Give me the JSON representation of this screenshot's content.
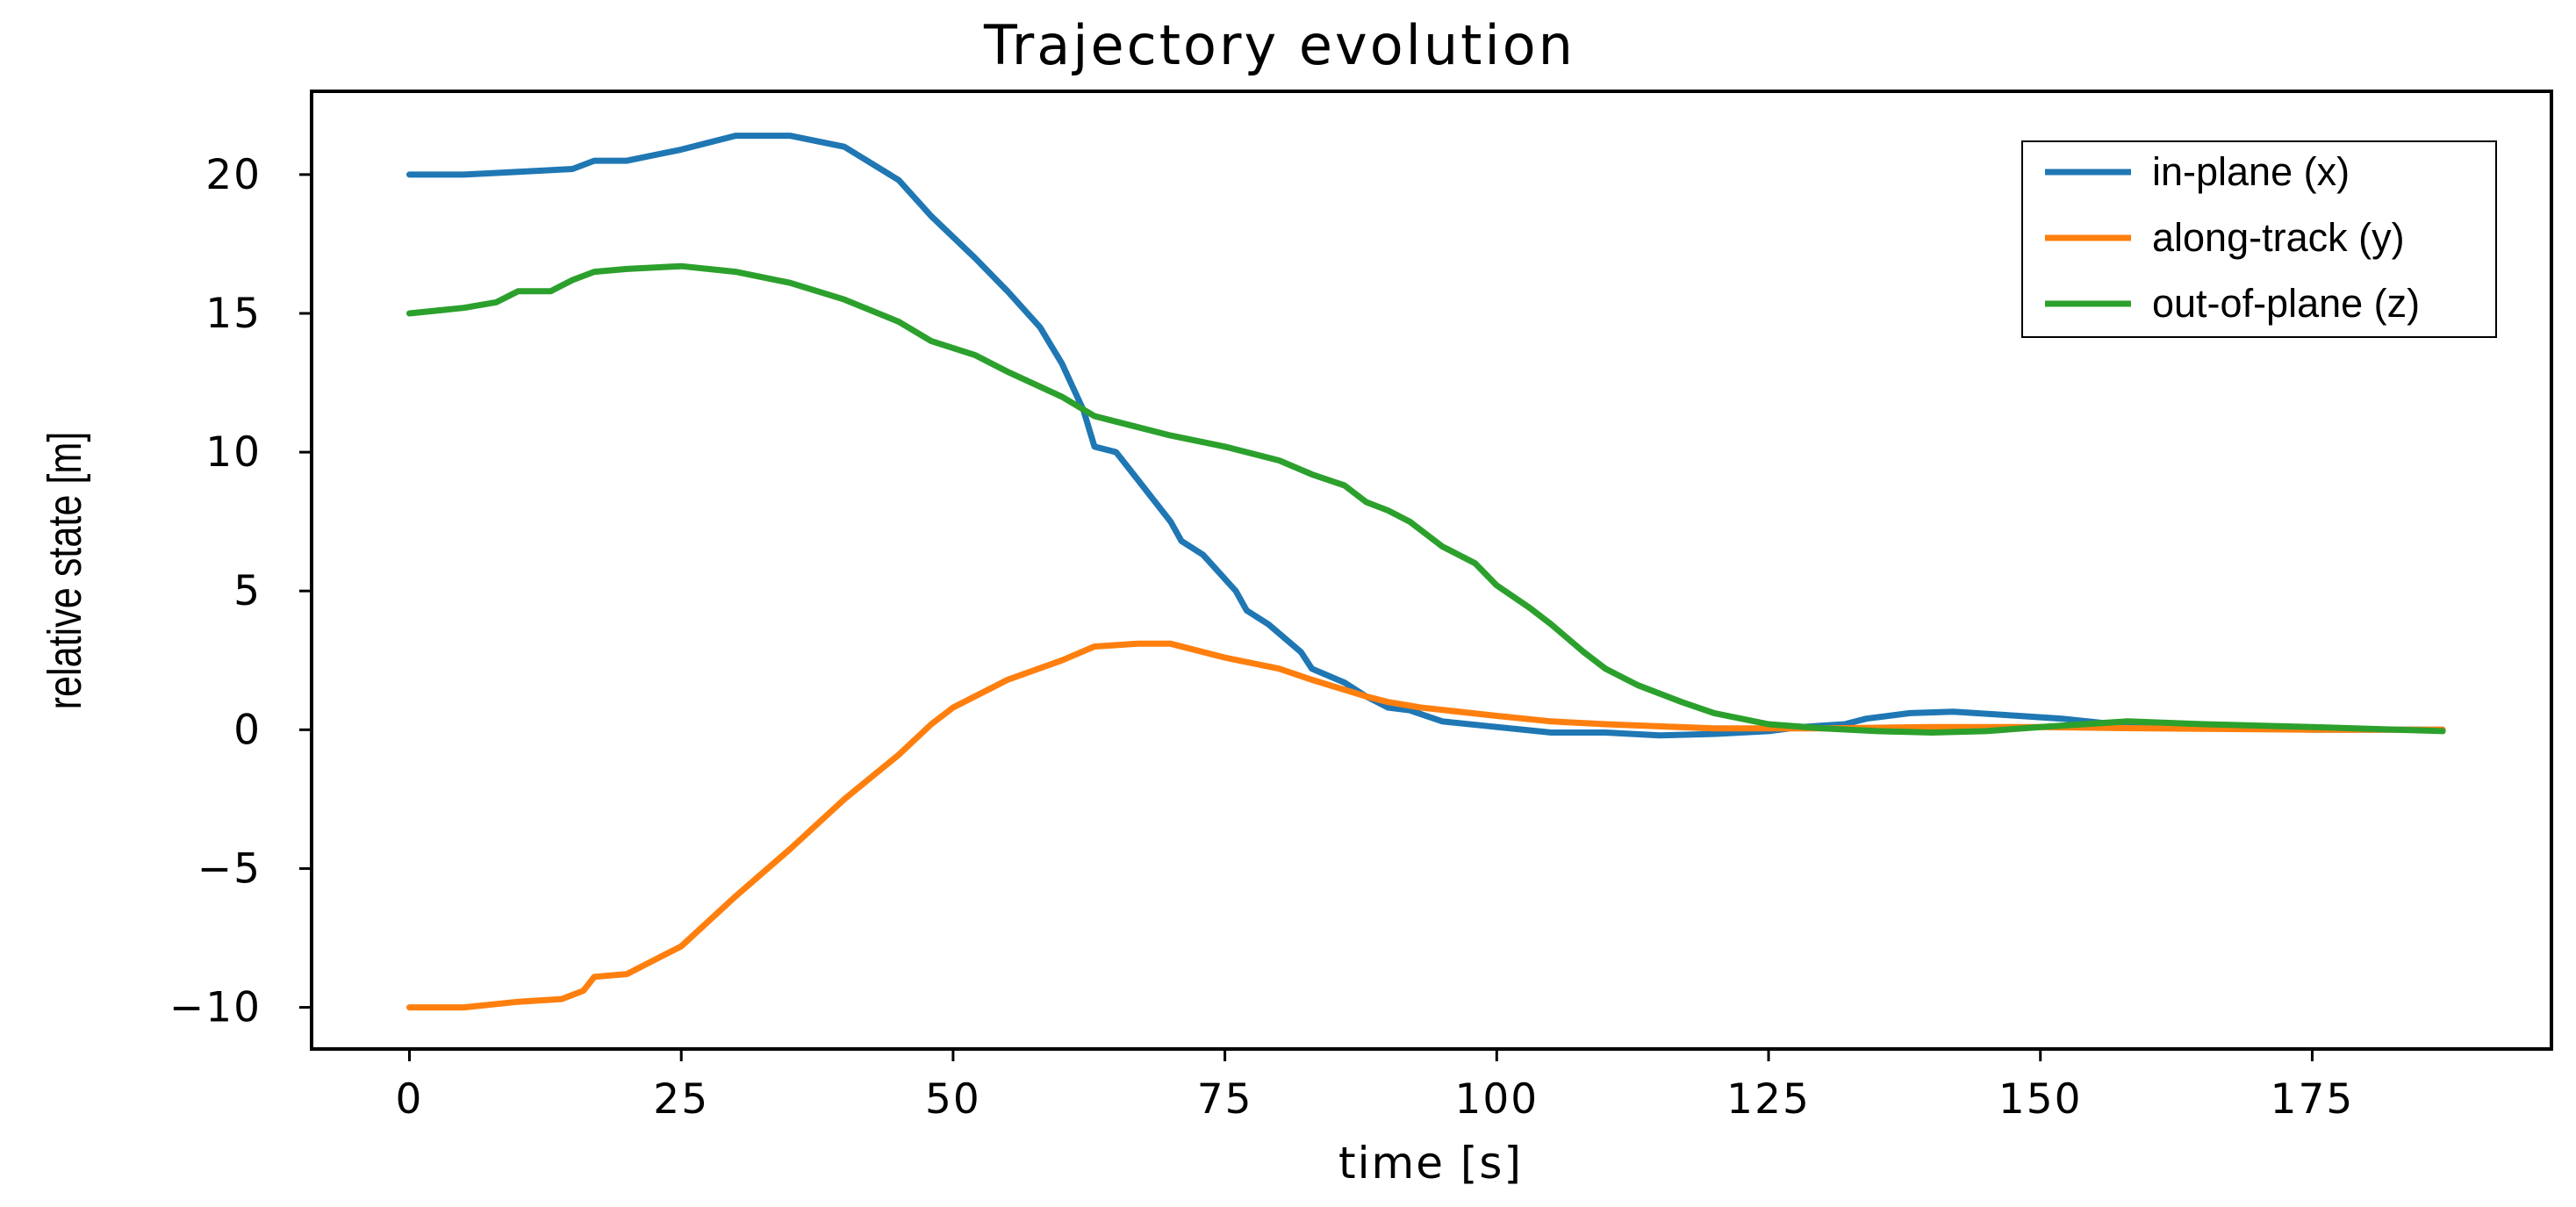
{
  "chart_data": {
    "type": "line",
    "title": "Trajectory evolution",
    "xlabel": "time [s]",
    "ylabel": "relative state [m]",
    "xlim": [
      -9,
      197
    ],
    "ylim": [
      -11.5,
      23
    ],
    "xticks": [
      0,
      25,
      50,
      75,
      100,
      125,
      150,
      175
    ],
    "yticks": [
      -10,
      -5,
      0,
      5,
      10,
      15,
      20
    ],
    "xtick_labels": [
      "0",
      "25",
      "50",
      "75",
      "100",
      "125",
      "150",
      "175"
    ],
    "ytick_labels": [
      "−10",
      "−5",
      "0",
      "5",
      "10",
      "15",
      "20"
    ],
    "grid": false,
    "legend_position": "top-right",
    "series": [
      {
        "name": "in-plane (x)",
        "color": "#1f77b4",
        "points": [
          [
            0,
            20
          ],
          [
            5,
            20
          ],
          [
            10,
            20.1
          ],
          [
            15,
            20.2
          ],
          [
            17,
            20.5
          ],
          [
            20,
            20.5
          ],
          [
            25,
            20.9
          ],
          [
            30,
            21.4
          ],
          [
            35,
            21.4
          ],
          [
            40,
            21
          ],
          [
            45,
            19.8
          ],
          [
            48,
            18.5
          ],
          [
            52,
            17
          ],
          [
            55,
            15.8
          ],
          [
            58,
            14.5
          ],
          [
            60,
            13.2
          ],
          [
            62,
            11.5
          ],
          [
            63,
            10.2
          ],
          [
            65,
            10
          ],
          [
            67,
            9
          ],
          [
            70,
            7.5
          ],
          [
            71,
            6.8
          ],
          [
            73,
            6.3
          ],
          [
            76,
            5
          ],
          [
            77,
            4.3
          ],
          [
            79,
            3.8
          ],
          [
            82,
            2.8
          ],
          [
            83,
            2.2
          ],
          [
            86,
            1.7
          ],
          [
            88,
            1.2
          ],
          [
            90,
            0.8
          ],
          [
            92,
            0.7
          ],
          [
            95,
            0.3
          ],
          [
            100,
            0.1
          ],
          [
            105,
            -0.1
          ],
          [
            110,
            -0.1
          ],
          [
            115,
            -0.2
          ],
          [
            120,
            -0.15
          ],
          [
            125,
            -0.05
          ],
          [
            128,
            0.1
          ],
          [
            132,
            0.2
          ],
          [
            134,
            0.4
          ],
          [
            138,
            0.6
          ],
          [
            142,
            0.65
          ],
          [
            148,
            0.5
          ],
          [
            152,
            0.4
          ],
          [
            158,
            0.15
          ],
          [
            165,
            0.1
          ],
          [
            175,
            0
          ],
          [
            187,
            0
          ]
        ]
      },
      {
        "name": "along-track (y)",
        "color": "#ff7f0e",
        "points": [
          [
            0,
            -10
          ],
          [
            5,
            -10
          ],
          [
            10,
            -9.8
          ],
          [
            14,
            -9.7
          ],
          [
            16,
            -9.4
          ],
          [
            17,
            -8.9
          ],
          [
            20,
            -8.8
          ],
          [
            25,
            -7.8
          ],
          [
            30,
            -6
          ],
          [
            35,
            -4.3
          ],
          [
            40,
            -2.5
          ],
          [
            45,
            -0.9
          ],
          [
            48,
            0.2
          ],
          [
            50,
            0.8
          ],
          [
            55,
            1.8
          ],
          [
            60,
            2.5
          ],
          [
            63,
            3
          ],
          [
            67,
            3.1
          ],
          [
            70,
            3.1
          ],
          [
            75,
            2.6
          ],
          [
            80,
            2.2
          ],
          [
            83,
            1.8
          ],
          [
            88,
            1.2
          ],
          [
            90,
            1
          ],
          [
            93,
            0.8
          ],
          [
            100,
            0.5
          ],
          [
            105,
            0.3
          ],
          [
            110,
            0.2
          ],
          [
            120,
            0.05
          ],
          [
            130,
            0.05
          ],
          [
            140,
            0.1
          ],
          [
            150,
            0.1
          ],
          [
            160,
            0.05
          ],
          [
            175,
            0
          ],
          [
            187,
            0
          ]
        ]
      },
      {
        "name": "out-of-plane (z)",
        "color": "#2ca02c",
        "points": [
          [
            0,
            15
          ],
          [
            5,
            15.2
          ],
          [
            8,
            15.4
          ],
          [
            10,
            15.8
          ],
          [
            13,
            15.8
          ],
          [
            15,
            16.2
          ],
          [
            17,
            16.5
          ],
          [
            20,
            16.6
          ],
          [
            25,
            16.7
          ],
          [
            30,
            16.5
          ],
          [
            35,
            16.1
          ],
          [
            40,
            15.5
          ],
          [
            45,
            14.7
          ],
          [
            48,
            14
          ],
          [
            52,
            13.5
          ],
          [
            55,
            12.9
          ],
          [
            60,
            12
          ],
          [
            63,
            11.3
          ],
          [
            65,
            11.1
          ],
          [
            70,
            10.6
          ],
          [
            75,
            10.2
          ],
          [
            80,
            9.7
          ],
          [
            83,
            9.2
          ],
          [
            86,
            8.8
          ],
          [
            88,
            8.2
          ],
          [
            90,
            7.9
          ],
          [
            92,
            7.5
          ],
          [
            95,
            6.6
          ],
          [
            98,
            6
          ],
          [
            100,
            5.2
          ],
          [
            103,
            4.4
          ],
          [
            105,
            3.8
          ],
          [
            108,
            2.8
          ],
          [
            110,
            2.2
          ],
          [
            113,
            1.6
          ],
          [
            117,
            1
          ],
          [
            120,
            0.6
          ],
          [
            125,
            0.2
          ],
          [
            130,
            0.05
          ],
          [
            135,
            -0.05
          ],
          [
            140,
            -0.1
          ],
          [
            145,
            -0.05
          ],
          [
            150,
            0.1
          ],
          [
            158,
            0.3
          ],
          [
            165,
            0.2
          ],
          [
            175,
            0.1
          ],
          [
            187,
            -0.05
          ]
        ]
      }
    ]
  }
}
